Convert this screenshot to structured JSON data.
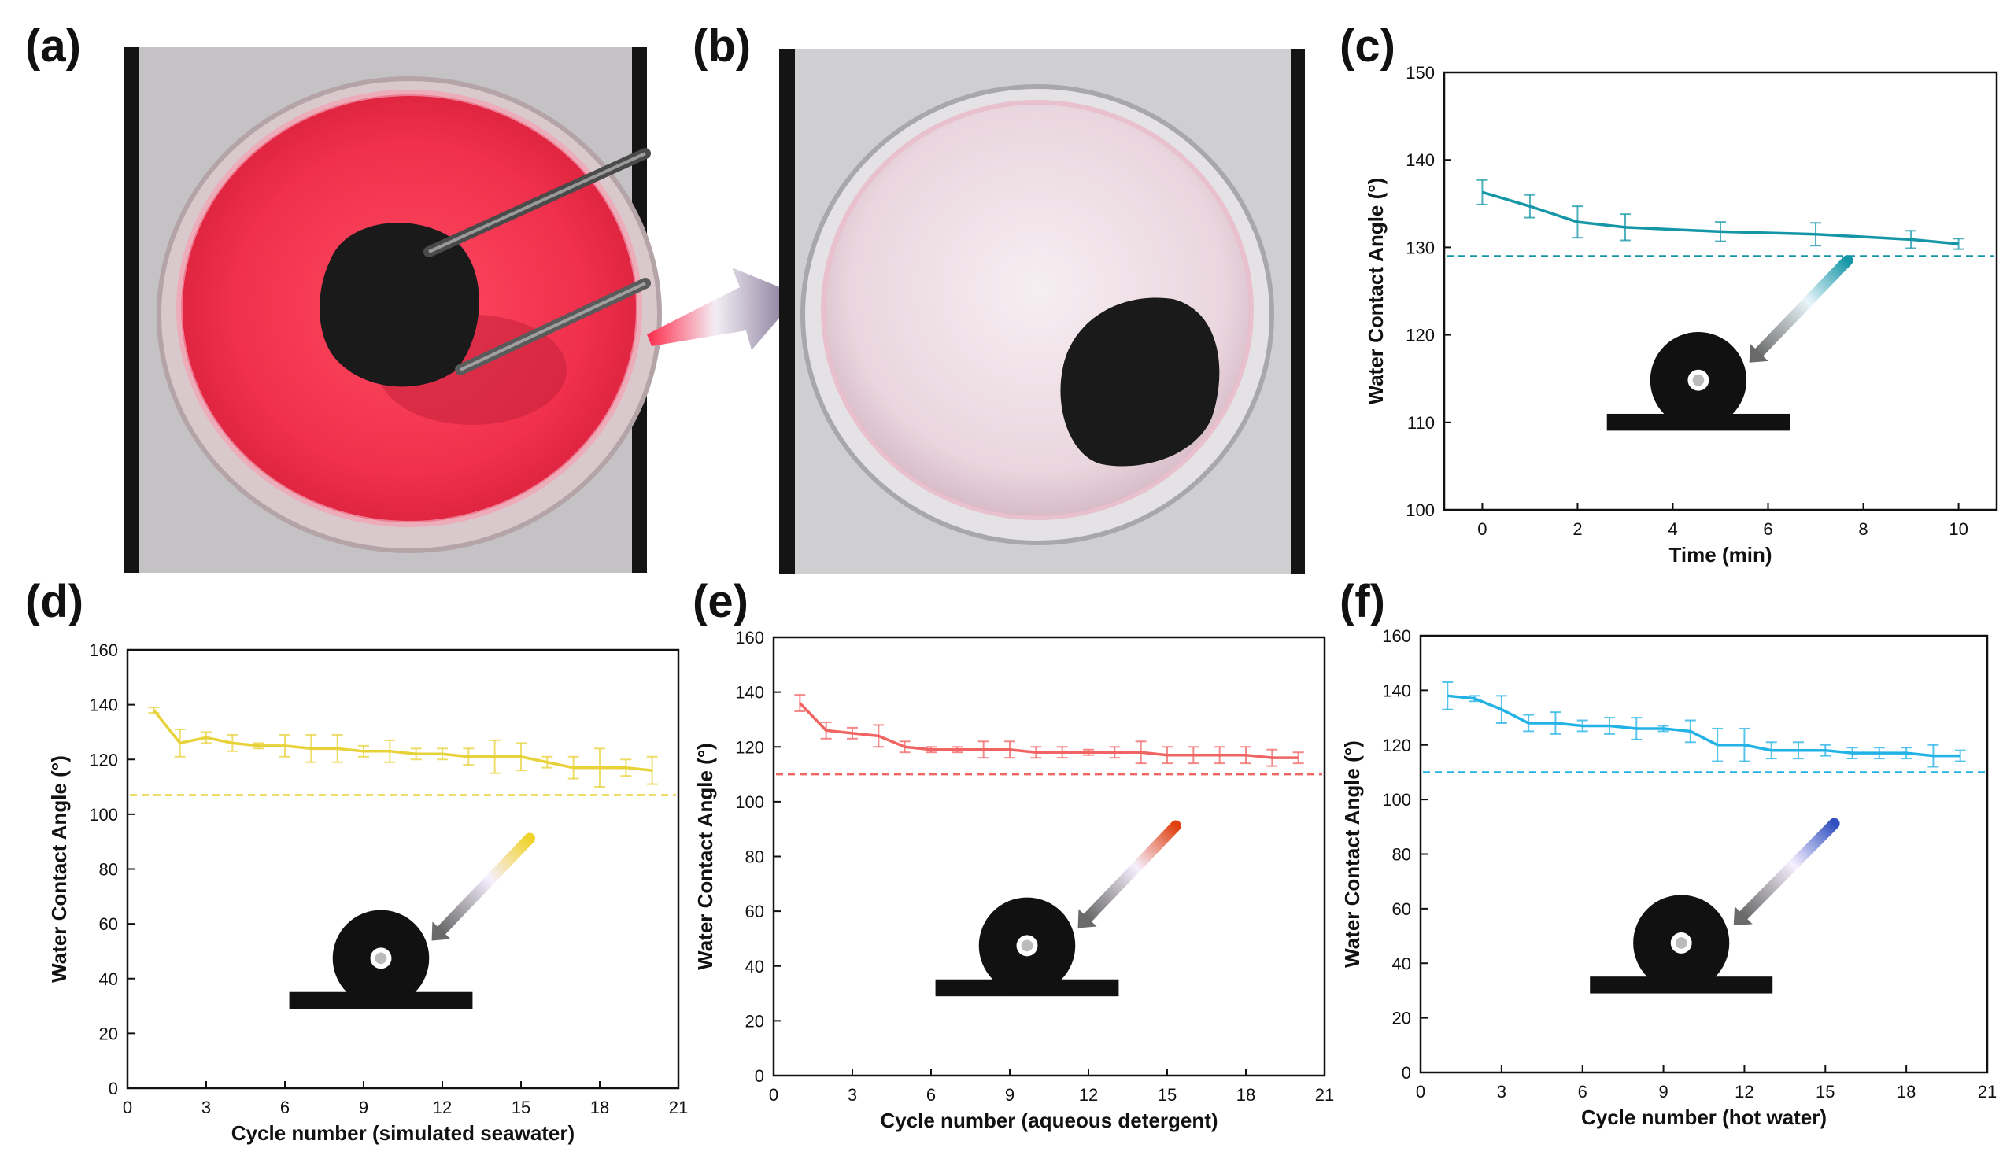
{
  "panels": {
    "a": {
      "label": "(a)",
      "description": "Petri dish with red dye solution and black sponge held by tweezers"
    },
    "b": {
      "label": "(b)",
      "description": "Petri dish after dye removal with black sponge"
    },
    "c": {
      "label": "(c)"
    },
    "d": {
      "label": "(d)"
    },
    "e": {
      "label": "(e)"
    },
    "f": {
      "label": "(f)"
    }
  },
  "colors": {
    "c": "#1496a6",
    "d": "#e8d23a",
    "e": "#f06464",
    "f": "#22b2e6",
    "photo_red": "#ee2a4a",
    "photo_clear": "#efe0e6",
    "sponge": "#1a1a1a",
    "axis": "#111111"
  },
  "chart_data": [
    {
      "id": "c",
      "type": "line",
      "xlabel": "Time (min)",
      "ylabel": "Water Contact Angle (°)",
      "xlim": [
        -0.8,
        10.8
      ],
      "ylim": [
        100,
        150
      ],
      "xticks": [
        0,
        2,
        4,
        6,
        8,
        10
      ],
      "yticks": [
        100,
        110,
        120,
        130,
        140,
        150
      ],
      "x": [
        0,
        1,
        2,
        3,
        5,
        7,
        9,
        10
      ],
      "y": [
        136.3,
        134.7,
        132.9,
        132.3,
        131.8,
        131.5,
        130.9,
        130.4
      ],
      "err": [
        1.4,
        1.3,
        1.8,
        1.5,
        1.1,
        1.3,
        1.0,
        0.6
      ],
      "reference_line": 129,
      "inset": "water droplet on sample surface"
    },
    {
      "id": "d",
      "type": "line",
      "xlabel": "Cycle number (simulated seawater)",
      "ylabel": "Water Contact Angle (°)",
      "xlim": [
        0,
        21
      ],
      "ylim": [
        0,
        160
      ],
      "xticks": [
        0,
        3,
        6,
        9,
        12,
        15,
        18,
        21
      ],
      "yticks": [
        0,
        20,
        40,
        60,
        80,
        100,
        120,
        140,
        160
      ],
      "x": [
        1,
        2,
        3,
        4,
        5,
        6,
        7,
        8,
        9,
        10,
        11,
        12,
        13,
        14,
        15,
        16,
        17,
        18,
        19,
        20
      ],
      "y": [
        138,
        126,
        128,
        126,
        125,
        125,
        124,
        124,
        123,
        123,
        122,
        122,
        121,
        121,
        121,
        119,
        117,
        117,
        117,
        116
      ],
      "err": [
        1,
        5,
        2,
        3,
        1,
        4,
        5,
        5,
        2,
        4,
        2,
        2,
        3,
        6,
        5,
        2,
        4,
        7,
        3,
        5
      ],
      "reference_line": 107,
      "inset": "water droplet on sample surface"
    },
    {
      "id": "e",
      "type": "line",
      "xlabel": "Cycle number (aqueous detergent)",
      "ylabel": "Water Contact Angle (°)",
      "xlim": [
        0,
        21
      ],
      "ylim": [
        0,
        160
      ],
      "xticks": [
        0,
        3,
        6,
        9,
        12,
        15,
        18,
        21
      ],
      "yticks": [
        0,
        20,
        40,
        60,
        80,
        100,
        120,
        140,
        160
      ],
      "x": [
        1,
        2,
        3,
        4,
        5,
        6,
        7,
        8,
        9,
        10,
        11,
        12,
        13,
        14,
        15,
        16,
        17,
        18,
        19,
        20
      ],
      "y": [
        136,
        126,
        125,
        124,
        120,
        119,
        119,
        119,
        119,
        118,
        118,
        118,
        118,
        118,
        117,
        117,
        117,
        117,
        116,
        116
      ],
      "err": [
        3,
        3,
        2,
        4,
        2,
        1,
        1,
        3,
        3,
        2,
        2,
        1,
        2,
        4,
        3,
        3,
        3,
        3,
        3,
        2
      ],
      "reference_line": 110,
      "inset": "water droplet on sample surface"
    },
    {
      "id": "f",
      "type": "line",
      "xlabel": "Cycle number (hot water)",
      "ylabel": "Water Contact Angle (°)",
      "xlim": [
        0,
        21
      ],
      "ylim": [
        0,
        160
      ],
      "xticks": [
        0,
        3,
        6,
        9,
        12,
        15,
        18,
        21
      ],
      "yticks": [
        0,
        20,
        40,
        60,
        80,
        100,
        120,
        140,
        160
      ],
      "x": [
        1,
        2,
        3,
        4,
        5,
        6,
        7,
        8,
        9,
        10,
        11,
        12,
        13,
        14,
        15,
        16,
        17,
        18,
        19,
        20
      ],
      "y": [
        138,
        137,
        133,
        128,
        128,
        127,
        127,
        126,
        126,
        125,
        120,
        120,
        118,
        118,
        118,
        117,
        117,
        117,
        116,
        116
      ],
      "err": [
        5,
        1,
        5,
        3,
        4,
        2,
        3,
        4,
        1,
        4,
        6,
        6,
        3,
        3,
        2,
        2,
        2,
        2,
        4,
        2
      ],
      "reference_line": 110,
      "inset": "water droplet on sample surface"
    }
  ]
}
